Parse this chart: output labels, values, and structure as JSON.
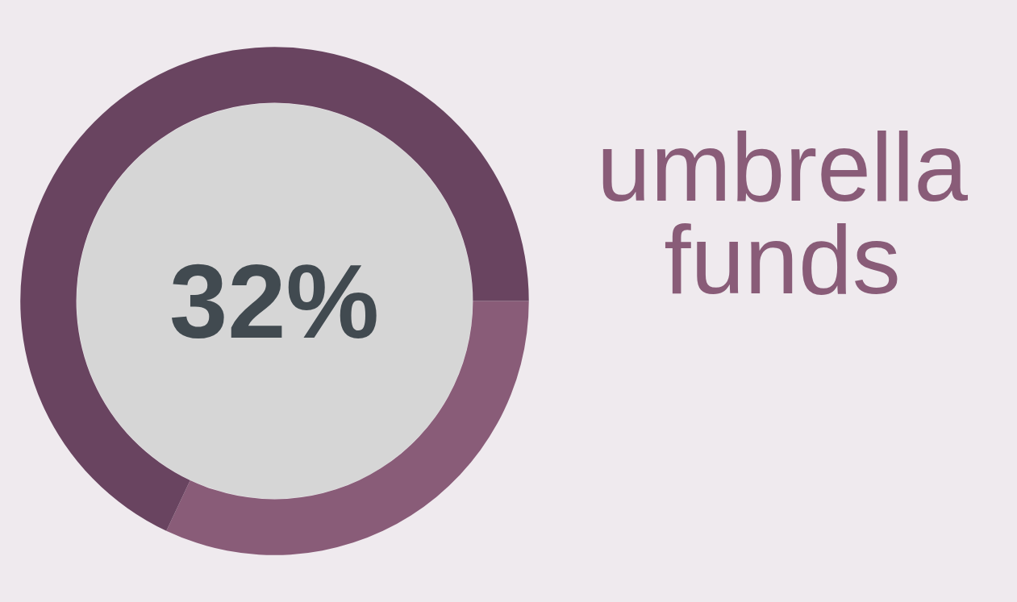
{
  "chart_data": {
    "type": "donut",
    "categories": [
      "umbrella funds",
      null
    ],
    "values": [
      32,
      68
    ],
    "colors": [
      "#895c78",
      "#694460"
    ],
    "value_labels": [
      "32%",
      null
    ]
  }
}
